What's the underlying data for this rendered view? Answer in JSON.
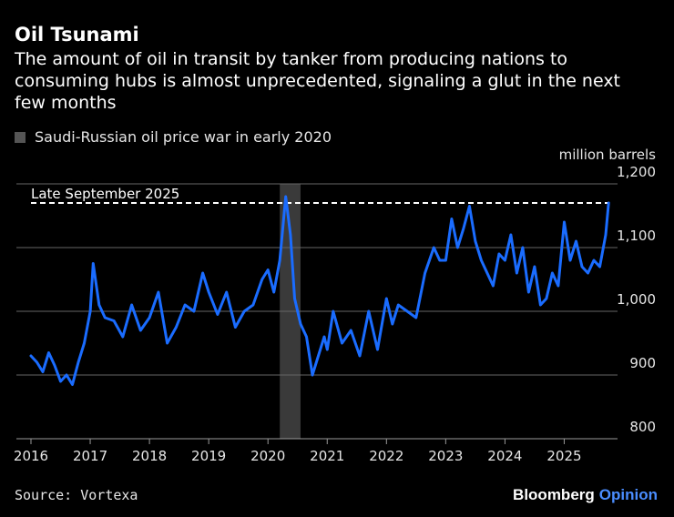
{
  "title": "Oil Tsunami",
  "subtitle": "The amount of oil in transit by tanker from producing nations to consuming hubs is almost unprecedented, signaling a glut in the next few months",
  "legend": {
    "label": "Saudi-Russian oil price war in early 2020"
  },
  "source": "Source: Vortexa",
  "brand": {
    "name": "Bloomberg",
    "suffix": "Opinion"
  },
  "colors": {
    "line": "#1a6cff",
    "shade": "#3a3a3a",
    "grid": "#666666",
    "brand_accent": "#4a8dff"
  },
  "chart_data": {
    "type": "line",
    "unit": "million barrels",
    "ylim": [
      800,
      1200
    ],
    "xlim": [
      2016,
      2025.9
    ],
    "y_ticks": [
      800,
      900,
      1000,
      1100,
      1200
    ],
    "y_tick_labels": [
      "800",
      "900",
      "1,000",
      "1,100",
      "1,200"
    ],
    "x_ticks": [
      2016,
      2017,
      2018,
      2019,
      2020,
      2021,
      2022,
      2023,
      2024,
      2025
    ],
    "x_tick_labels": [
      "2016",
      "2017",
      "2018",
      "2019",
      "2020",
      "2021",
      "2022",
      "2023",
      "2024",
      "2025"
    ],
    "shaded_region": {
      "label": "Saudi-Russian oil price war in early 2020",
      "start": 2020.2,
      "end": 2020.55
    },
    "reference_line": {
      "label": "Late September 2025",
      "value": 1170
    },
    "series": [
      {
        "name": "Oil in transit",
        "x": [
          2016.0,
          2016.1,
          2016.2,
          2016.3,
          2016.4,
          2016.5,
          2016.6,
          2016.7,
          2016.8,
          2016.9,
          2017.0,
          2017.05,
          2017.15,
          2017.25,
          2017.4,
          2017.55,
          2017.7,
          2017.85,
          2018.0,
          2018.15,
          2018.3,
          2018.45,
          2018.6,
          2018.75,
          2018.9,
          2019.0,
          2019.15,
          2019.3,
          2019.45,
          2019.6,
          2019.75,
          2019.9,
          2020.0,
          2020.1,
          2020.2,
          2020.3,
          2020.38,
          2020.45,
          2020.55,
          2020.65,
          2020.75,
          2020.85,
          2020.95,
          2021.0,
          2021.1,
          2021.25,
          2021.4,
          2021.55,
          2021.7,
          2021.85,
          2022.0,
          2022.1,
          2022.2,
          2022.35,
          2022.5,
          2022.65,
          2022.8,
          2022.9,
          2023.0,
          2023.1,
          2023.2,
          2023.3,
          2023.4,
          2023.5,
          2023.6,
          2023.7,
          2023.8,
          2023.9,
          2024.0,
          2024.1,
          2024.2,
          2024.3,
          2024.4,
          2024.5,
          2024.6,
          2024.7,
          2024.8,
          2024.9,
          2025.0,
          2025.1,
          2025.2,
          2025.3,
          2025.4,
          2025.5,
          2025.6,
          2025.7,
          2025.75
        ],
        "values": [
          930,
          920,
          905,
          935,
          915,
          890,
          900,
          885,
          920,
          950,
          1000,
          1075,
          1010,
          990,
          985,
          960,
          1010,
          970,
          990,
          1030,
          950,
          975,
          1010,
          1000,
          1060,
          1030,
          995,
          1030,
          975,
          1000,
          1010,
          1050,
          1065,
          1030,
          1080,
          1180,
          1120,
          1020,
          980,
          960,
          900,
          930,
          960,
          940,
          1000,
          950,
          970,
          930,
          1000,
          940,
          1020,
          980,
          1010,
          1000,
          990,
          1060,
          1100,
          1080,
          1080,
          1145,
          1100,
          1130,
          1165,
          1110,
          1080,
          1060,
          1040,
          1090,
          1080,
          1120,
          1060,
          1100,
          1030,
          1070,
          1010,
          1020,
          1060,
          1040,
          1140,
          1080,
          1110,
          1070,
          1060,
          1080,
          1070,
          1120,
          1170
        ]
      }
    ]
  }
}
